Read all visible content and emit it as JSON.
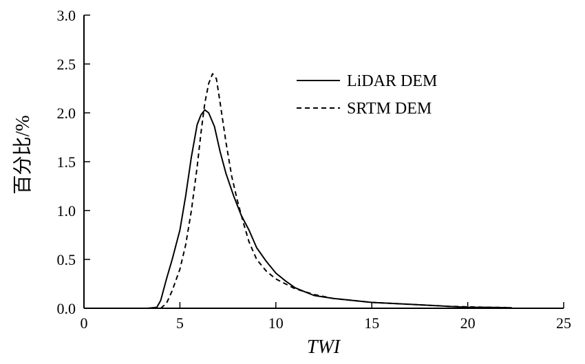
{
  "chart_data": {
    "type": "line",
    "xlabel": "TWI",
    "ylabel": "百分比/%",
    "xlim": [
      0,
      25
    ],
    "ylim": [
      0,
      3.0
    ],
    "xticks": [
      "0",
      "5",
      "10",
      "15",
      "20",
      "25"
    ],
    "yticks": [
      "0.0",
      "0.5",
      "1.0",
      "1.5",
      "2.0",
      "2.5",
      "3.0"
    ],
    "grid": false,
    "legend_position": "top-right",
    "series": [
      {
        "name": "LiDAR DEM",
        "style": "solid",
        "color": "#000000",
        "x": [
          3.3,
          3.8,
          4.0,
          4.3,
          4.6,
          5.0,
          5.3,
          5.6,
          5.9,
          6.1,
          6.3,
          6.5,
          6.8,
          7.1,
          7.4,
          7.8,
          8.2,
          8.6,
          9.0,
          9.5,
          10.0,
          10.5,
          11.0,
          11.5,
          12.0,
          13.0,
          14.0,
          15.0,
          16.0,
          17.0,
          18.0,
          19.0,
          20.0,
          21.0,
          22.3
        ],
        "y": [
          0.0,
          0.01,
          0.08,
          0.3,
          0.5,
          0.8,
          1.15,
          1.55,
          1.88,
          1.98,
          2.03,
          2.0,
          1.86,
          1.6,
          1.38,
          1.15,
          0.95,
          0.8,
          0.62,
          0.48,
          0.36,
          0.28,
          0.21,
          0.17,
          0.13,
          0.1,
          0.08,
          0.06,
          0.05,
          0.04,
          0.03,
          0.02,
          0.01,
          0.01,
          0.005
        ]
      },
      {
        "name": "SRTM DEM",
        "style": "dashed",
        "color": "#000000",
        "x": [
          4.0,
          4.3,
          4.6,
          5.0,
          5.3,
          5.6,
          5.9,
          6.1,
          6.3,
          6.5,
          6.7,
          6.9,
          7.1,
          7.4,
          7.7,
          8.0,
          8.3,
          8.6,
          9.0,
          9.5,
          10.0,
          10.5,
          11.0,
          12.0,
          13.0,
          14.0,
          15.0,
          16.0,
          17.0,
          18.0,
          19.0,
          20.0,
          21.0,
          22.0
        ],
        "y": [
          0.0,
          0.05,
          0.18,
          0.4,
          0.65,
          1.0,
          1.45,
          1.8,
          2.1,
          2.3,
          2.4,
          2.35,
          2.1,
          1.7,
          1.35,
          1.1,
          0.88,
          0.68,
          0.5,
          0.38,
          0.3,
          0.25,
          0.2,
          0.14,
          0.1,
          0.08,
          0.06,
          0.05,
          0.04,
          0.03,
          0.02,
          0.015,
          0.01,
          0.008
        ]
      }
    ]
  }
}
